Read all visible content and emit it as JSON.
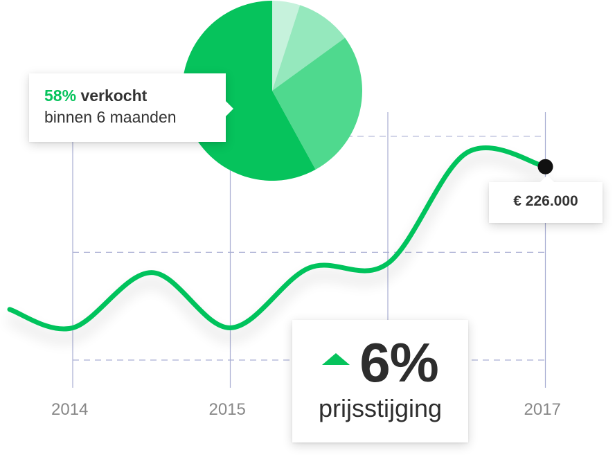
{
  "colors": {
    "accent": "#06c35c",
    "pie_slices": [
      "#06c35c",
      "#4fd98e",
      "#95e8bd",
      "#c6f2dc"
    ],
    "grid": "#a9aed3",
    "text_dark": "#2d2d2d",
    "tick_text": "#888888"
  },
  "sold_callout": {
    "percent": "58%",
    "text_bold": "verkocht",
    "line2": "binnen 6 maanden"
  },
  "price_callout": {
    "label": "€ 226.000"
  },
  "rise_card": {
    "icon": "triangle-up-icon",
    "value": "6%",
    "label": "prijsstijging"
  },
  "chart_data": [
    {
      "type": "pie",
      "values": [
        58,
        27,
        10,
        5
      ],
      "title": ""
    },
    {
      "type": "line",
      "x_ticks": [
        "2014",
        "2015",
        "",
        "2017"
      ],
      "x": [
        2013.6,
        2014.0,
        2014.5,
        2015.0,
        2015.5,
        2016.0,
        2016.5,
        2017.0
      ],
      "y": [
        0.55,
        0.35,
        0.95,
        0.35,
        1.0,
        1.05,
        2.25,
        2.1
      ],
      "grid": true,
      "highlight_point": {
        "x": 2017.0,
        "label": "€ 226.000"
      }
    }
  ]
}
